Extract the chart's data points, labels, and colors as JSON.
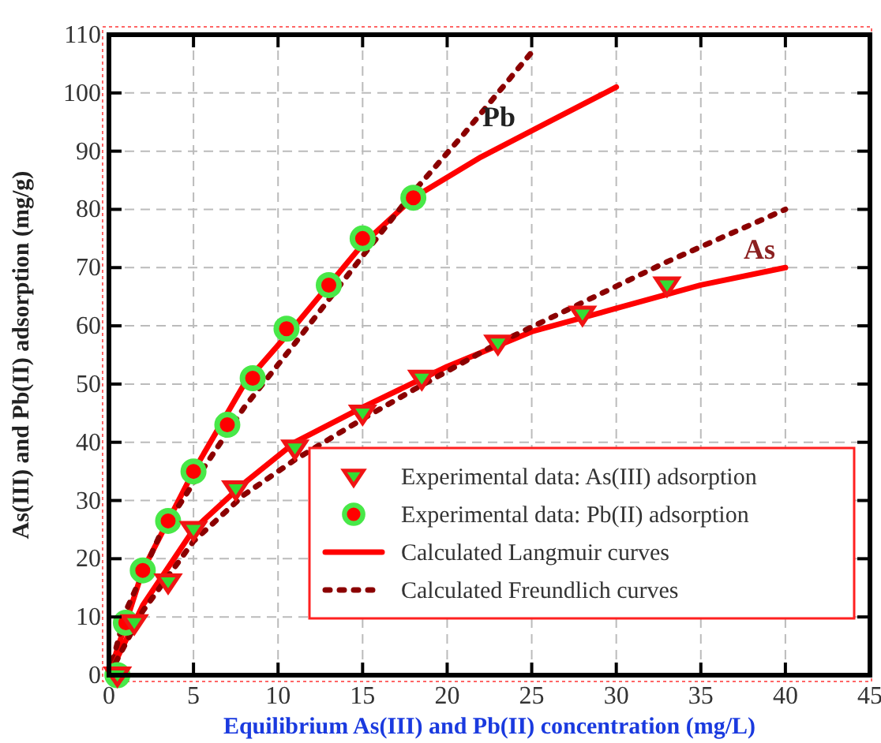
{
  "chart_data": {
    "type": "scatter",
    "xlabel": "Equilibrium As(III) and Pb(II) concentration (mg/L)",
    "ylabel": "As(III) and Pb(II) adsorption (mg/g)",
    "xlim": [
      0,
      45
    ],
    "xticks": [
      0,
      5,
      10,
      15,
      20,
      25,
      30,
      35,
      40,
      45
    ],
    "ylim": [
      0,
      110
    ],
    "yticks": [
      0,
      10,
      20,
      30,
      40,
      50,
      60,
      70,
      80,
      90,
      100,
      110
    ],
    "grid": true,
    "legend": "bottom right",
    "series": [
      {
        "marker": "triangle",
        "name": "Experimental data: As(III) adsorption",
        "color": "#33dd33",
        "x": [
          0.5,
          1.5,
          3.5,
          5,
          7.5,
          11,
          15,
          18.5,
          23,
          28,
          33
        ],
        "values": [
          0,
          9,
          16,
          25,
          32,
          39,
          45,
          51,
          57,
          62,
          67
        ]
      },
      {
        "marker": "circle",
        "name": "Experimental data: Pb(II) adsorption",
        "color": "#ff0000",
        "x": [
          0.5,
          1,
          2,
          3.5,
          5,
          7,
          8.5,
          10.5,
          13,
          15,
          18
        ],
        "values": [
          0,
          9,
          18,
          26.5,
          35,
          43,
          51,
          59.5,
          67,
          75,
          82
        ]
      },
      {
        "type": "line",
        "line_style": "solid",
        "name": "Calculated Langmuir curves",
        "color": "#ff0000",
        "x": [
          0,
          2,
          5,
          8,
          11,
          15,
          18,
          22,
          26,
          30
        ],
        "values": [
          0,
          18,
          35,
          50,
          60,
          74,
          82,
          89,
          95,
          101
        ]
      },
      {
        "type": "line",
        "line_style": "dotted",
        "name": "Calculated Freundlich curves",
        "color": "#8b0000",
        "x": [
          0,
          1,
          3,
          5,
          8,
          11,
          15,
          18,
          21,
          25
        ],
        "values": [
          0,
          11,
          24,
          33,
          46,
          57,
          72,
          83,
          93,
          107
        ]
      },
      {
        "type": "line",
        "line_style": "solid",
        "color": "#ff0000",
        "x": [
          0,
          2,
          5,
          8,
          11,
          15,
          20,
          25,
          30,
          35,
          40
        ],
        "values": [
          0,
          12,
          25,
          33,
          40,
          46,
          53,
          59,
          63,
          67,
          70
        ]
      },
      {
        "type": "line",
        "line_style": "dotted",
        "color": "#8b0000",
        "x": [
          0,
          2,
          5,
          8,
          11,
          15,
          18,
          23,
          28,
          33,
          40
        ],
        "values": [
          0,
          11,
          23,
          31,
          37,
          44,
          49,
          57,
          64,
          71,
          80
        ]
      }
    ],
    "annotations": [
      "Pb",
      "As"
    ]
  }
}
